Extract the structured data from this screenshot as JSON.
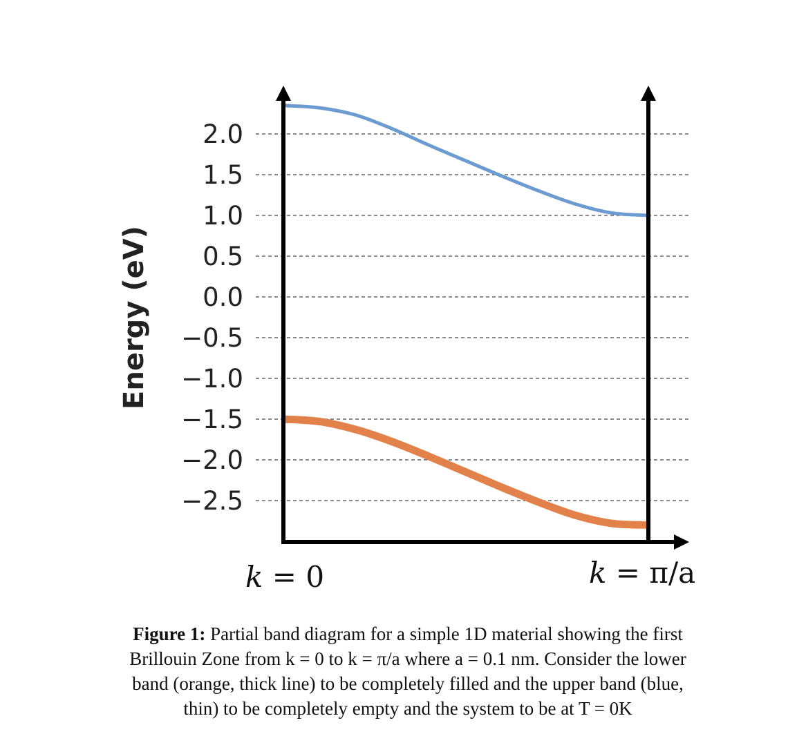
{
  "chart_data": {
    "type": "line",
    "ylabel": "Energy (eV)",
    "yticks": [
      "2.0",
      "1.5",
      "1.0",
      "0.5",
      "0.0",
      "−0.5",
      "−1.0",
      "−1.5",
      "−2.0",
      "−2.5"
    ],
    "ytick_values": [
      2.0,
      1.5,
      1.0,
      0.5,
      0.0,
      -0.5,
      -1.0,
      -1.5,
      -2.0,
      -2.5
    ],
    "ylim": [
      -2.95,
      2.8
    ],
    "grid": "dashed horizontal",
    "x_left_label": {
      "var": "k",
      "rest": " = 0"
    },
    "x_right_label": {
      "var": "k",
      "rest": " = π/a"
    },
    "series": [
      {
        "color": "#6c9bd2",
        "x": [
          0,
          0.1,
          0.2,
          0.3,
          0.4,
          0.5,
          0.6,
          0.7,
          0.8,
          0.9,
          1.0
        ],
        "values": [
          2.35,
          2.32,
          2.23,
          2.06,
          1.86,
          1.67,
          1.48,
          1.3,
          1.14,
          1.03,
          1.0
        ]
      },
      {
        "color": "#e2824a",
        "x": [
          0,
          0.1,
          0.2,
          0.3,
          0.4,
          0.5,
          0.6,
          0.7,
          0.8,
          0.9,
          1.0
        ],
        "values": [
          -1.5,
          -1.53,
          -1.63,
          -1.78,
          -1.96,
          -2.15,
          -2.34,
          -2.52,
          -2.68,
          -2.78,
          -2.8
        ]
      }
    ]
  },
  "caption": {
    "label": "Figure 1:",
    "line1": " Partial band diagram for a simple 1D material showing the first",
    "line2": "Brillouin Zone from k = 0 to k = π/a where a = 0.1 nm. Consider the lower",
    "line3": "band (orange, thick line) to be completely filled and the upper band (blue,",
    "line4": "thin) to be completely empty and the system to be at T = 0K"
  }
}
